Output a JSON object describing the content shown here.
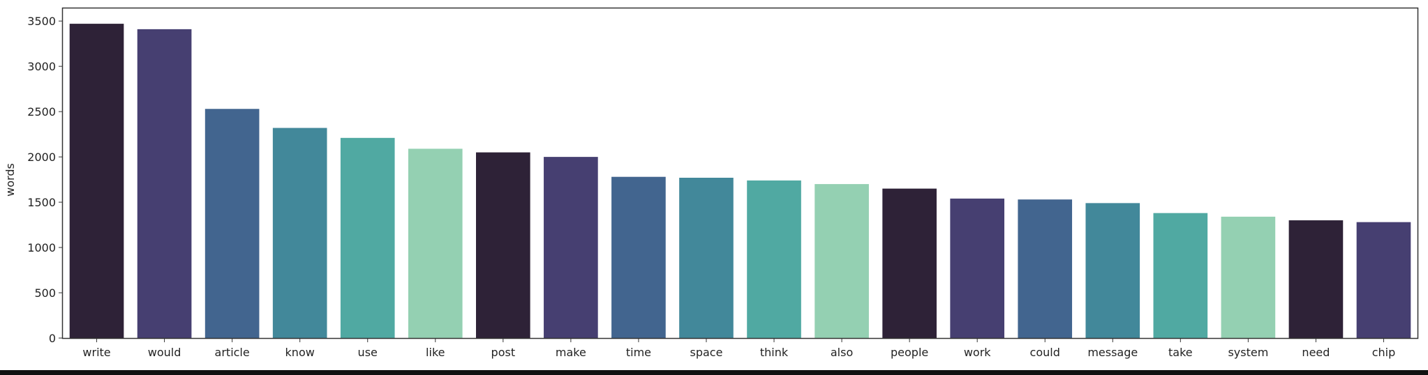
{
  "chart_data": {
    "type": "bar",
    "categories": [
      "write",
      "would",
      "article",
      "know",
      "use",
      "like",
      "post",
      "make",
      "time",
      "space",
      "think",
      "also",
      "people",
      "work",
      "could",
      "message",
      "take",
      "system",
      "need",
      "chip"
    ],
    "values": [
      3470,
      3410,
      2530,
      2320,
      2210,
      2090,
      2050,
      2000,
      1780,
      1770,
      1740,
      1700,
      1650,
      1540,
      1530,
      1490,
      1380,
      1340,
      1300,
      1280
    ],
    "title": "",
    "xlabel": "",
    "ylabel": "words",
    "ylim": [
      0,
      3640
    ],
    "yticks": [
      0,
      500,
      1000,
      1500,
      2000,
      2500,
      3000,
      3500
    ],
    "grid": false,
    "palette": [
      "#2e2237",
      "#463f71",
      "#42658f",
      "#42889a",
      "#50a9a2",
      "#94d0b2"
    ]
  }
}
